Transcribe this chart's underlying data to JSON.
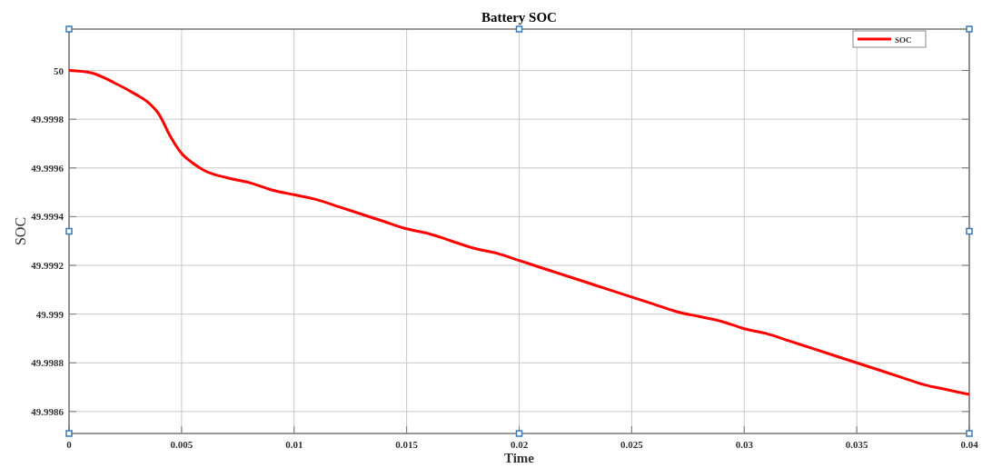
{
  "chart_data": {
    "type": "line",
    "title": "Battery SOC",
    "xlabel": "Time",
    "ylabel": "SOC",
    "x": [
      0,
      0.001,
      0.002,
      0.003,
      0.0035,
      0.004,
      0.0045,
      0.005,
      0.0055,
      0.006,
      0.007,
      0.008,
      0.009,
      0.01,
      0.011,
      0.012,
      0.013,
      0.014,
      0.015,
      0.016,
      0.017,
      0.018,
      0.019,
      0.02,
      0.021,
      0.022,
      0.023,
      0.024,
      0.025,
      0.026,
      0.027,
      0.028,
      0.029,
      0.03,
      0.031,
      0.032,
      0.033,
      0.034,
      0.035,
      0.036,
      0.037,
      0.038,
      0.039,
      0.04
    ],
    "series": [
      {
        "name": "SOC",
        "color": "#ff0000",
        "values": [
          50,
          49.99999,
          49.99995,
          49.9999,
          49.99987,
          49.99982,
          49.99973,
          49.99966,
          49.99962,
          49.99959,
          49.99956,
          49.99954,
          49.99951,
          49.99949,
          49.99947,
          49.99944,
          49.99941,
          49.99938,
          49.99935,
          49.99933,
          49.9993,
          49.99927,
          49.99925,
          49.99922,
          49.99919,
          49.99916,
          49.99913,
          49.9991,
          49.99907,
          49.99904,
          49.99901,
          49.99899,
          49.99897,
          49.99894,
          49.99892,
          49.99889,
          49.99886,
          49.99883,
          49.9988,
          49.99877,
          49.99874,
          49.99871,
          49.99869,
          49.99867
        ]
      }
    ],
    "xlim": [
      0,
      0.04
    ],
    "xticks": [
      0,
      0.005,
      0.01,
      0.015,
      0.02,
      0.025,
      0.03,
      0.035,
      0.04
    ],
    "ylim": [
      49.99851,
      50.00017
    ],
    "yticks": [
      49.9986,
      49.9988,
      49.999,
      49.9992,
      49.9994,
      49.9996,
      49.9998,
      50
    ],
    "grid": true,
    "legend": "top right",
    "line_style": "solid",
    "marker": "none"
  }
}
